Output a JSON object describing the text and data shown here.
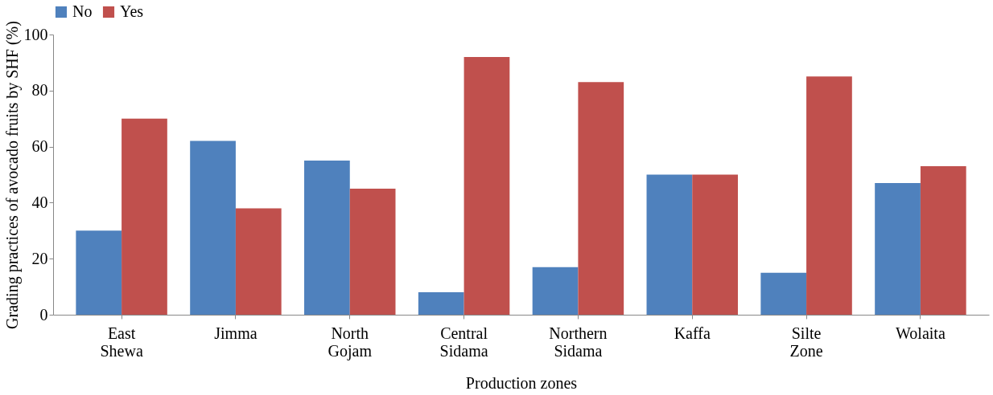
{
  "chart_data": {
    "type": "bar",
    "categories": [
      "East Shewa",
      "Jimma",
      "North Gojam",
      "Central Sidama",
      "Northern Sidama",
      "Kaffa",
      "Silte Zone",
      "Wolaita"
    ],
    "series": [
      {
        "name": "No",
        "color": "#4f81bd",
        "values": [
          30,
          62,
          55,
          8,
          17,
          50,
          15,
          47
        ]
      },
      {
        "name": "Yes",
        "color": "#c0504d",
        "values": [
          70,
          38,
          45,
          92,
          83,
          50,
          85,
          53
        ]
      }
    ],
    "xlabel": "Production zones",
    "ylabel": "Grading practices of avocado fruits by SHF (%)",
    "ylim": [
      0,
      100
    ],
    "yticks": [
      0,
      20,
      40,
      60,
      80,
      100
    ],
    "grid": false,
    "legend": "top"
  }
}
